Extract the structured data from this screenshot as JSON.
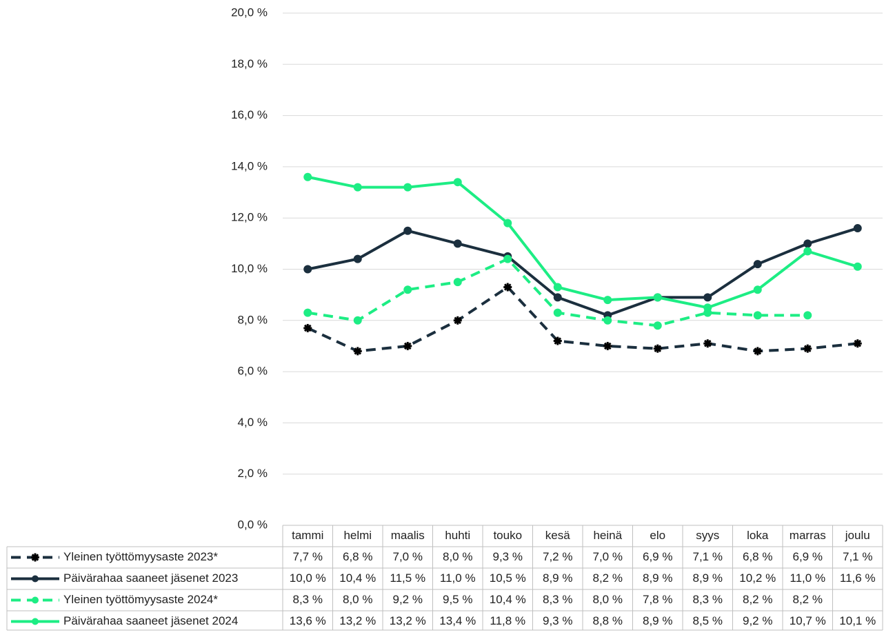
{
  "chart_data": {
    "type": "line",
    "categories": [
      "tammi",
      "helmi",
      "maalis",
      "huhti",
      "touko",
      "kesä",
      "heinä",
      "elo",
      "syys",
      "loka",
      "marras",
      "joulu"
    ],
    "series": [
      {
        "name": "Yleinen työttömyysaste 2023*",
        "color": "#1b2f3e",
        "dashed": true,
        "marker": "star",
        "values": [
          7.7,
          6.8,
          7.0,
          8.0,
          9.3,
          7.2,
          7.0,
          6.9,
          7.1,
          6.8,
          6.9,
          7.1
        ],
        "value_labels": [
          "7,7 %",
          "6,8 %",
          "7,0 %",
          "8,0 %",
          "9,3 %",
          "7,2 %",
          "7,0 %",
          "6,9 %",
          "7,1 %",
          "6,8 %",
          "6,9 %",
          "7,1 %"
        ]
      },
      {
        "name": "Päivärahaa saaneet jäsenet 2023",
        "color": "#1b2f3e",
        "dashed": false,
        "marker": "circle",
        "values": [
          10.0,
          10.4,
          11.5,
          11.0,
          10.5,
          8.9,
          8.2,
          8.9,
          8.9,
          10.2,
          11.0,
          11.6
        ],
        "value_labels": [
          "10,0 %",
          "10,4 %",
          "11,5 %",
          "11,0 %",
          "10,5 %",
          "8,9 %",
          "8,2 %",
          "8,9 %",
          "8,9 %",
          "10,2 %",
          "11,0 %",
          "11,6 %"
        ]
      },
      {
        "name": "Yleinen työttömyysaste 2024*",
        "color": "#1ded84",
        "dashed": true,
        "marker": "circle",
        "values": [
          8.3,
          8.0,
          9.2,
          9.5,
          10.4,
          8.3,
          8.0,
          7.8,
          8.3,
          8.2,
          8.2,
          null
        ],
        "value_labels": [
          "8,3 %",
          "8,0 %",
          "9,2 %",
          "9,5 %",
          "10,4 %",
          "8,3 %",
          "8,0 %",
          "7,8 %",
          "8,3 %",
          "8,2 %",
          "8,2 %",
          null
        ]
      },
      {
        "name": "Päivärahaa saaneet jäsenet 2024",
        "color": "#1ded84",
        "dashed": false,
        "marker": "circle",
        "values": [
          13.6,
          13.2,
          13.2,
          13.4,
          11.8,
          9.3,
          8.8,
          8.9,
          8.5,
          9.2,
          10.7,
          10.1
        ],
        "value_labels": [
          "13,6 %",
          "13,2 %",
          "13,2 %",
          "13,4 %",
          "11,8 %",
          "9,3 %",
          "8,8 %",
          "8,9 %",
          "8,5 %",
          "9,2 %",
          "10,7 %",
          "10,1 %"
        ]
      }
    ],
    "ylim": [
      0,
      20
    ],
    "yticks": [
      {
        "value": 0,
        "label": "0,0 %"
      },
      {
        "value": 2,
        "label": "2,0 %"
      },
      {
        "value": 4,
        "label": "4,0 %"
      },
      {
        "value": 6,
        "label": "6,0 %"
      },
      {
        "value": 8,
        "label": "8,0 %"
      },
      {
        "value": 10,
        "label": "10,0 %"
      },
      {
        "value": 12,
        "label": "12,0 %"
      },
      {
        "value": 14,
        "label": "14,0 %"
      },
      {
        "value": 16,
        "label": "16,0 %"
      },
      {
        "value": 18,
        "label": "18,0 %"
      },
      {
        "value": 20,
        "label": "20,0 %"
      }
    ],
    "grid": true,
    "data_table": true
  }
}
